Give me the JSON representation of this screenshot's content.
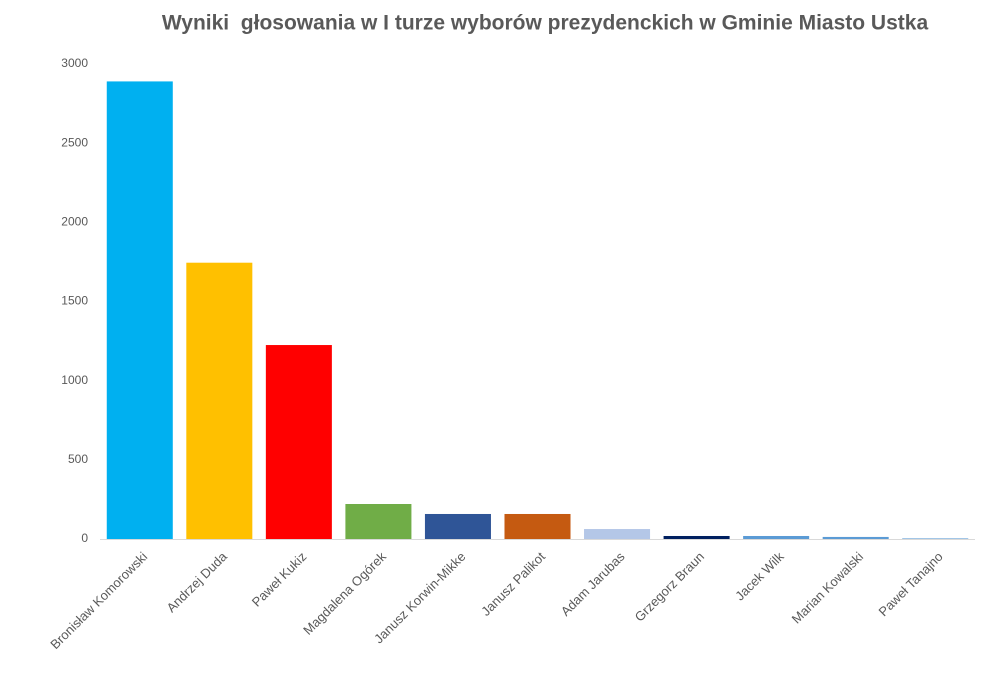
{
  "chart_data": {
    "type": "bar",
    "title": "Wyniki  głosowania w I turze wyborów prezydenckich w Gminie Miasto Ustka",
    "categories": [
      "Bronisław Komorowski",
      "Andrzej Duda",
      "Paweł Kukiz",
      "Magdalena Ogórek",
      "Janusz Korwin-Mikke",
      "Janusz Palikot",
      "Adam Jarubas",
      "Grzegorz  Braun",
      "Jacek Wilk",
      "Marian Kowalski",
      "Paweł Tanajno"
    ],
    "values": [
      2890,
      1745,
      1225,
      221,
      158,
      158,
      63,
      19,
      19,
      13,
      6
    ],
    "colors": [
      "#00b0f0",
      "#ffc000",
      "#ff0000",
      "#70ad47",
      "#2f5597",
      "#c55a11",
      "#b4c7e7",
      "#002060",
      "#5b9bd5",
      "#5b9bd5",
      "#9dc3e6"
    ],
    "ylim": [
      0,
      3000
    ],
    "yticks": [
      0,
      500,
      1000,
      1500,
      2000,
      2500,
      3000
    ],
    "grid": false
  }
}
